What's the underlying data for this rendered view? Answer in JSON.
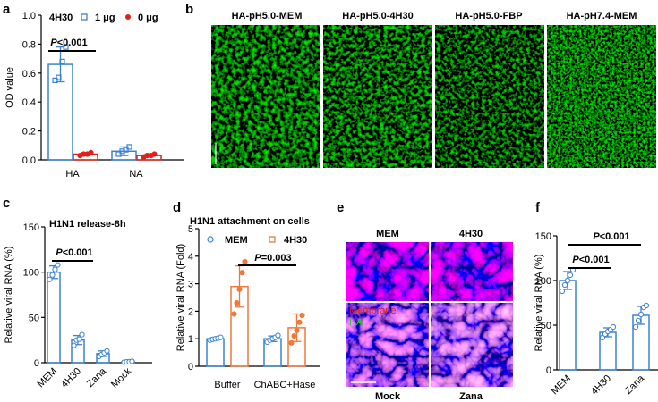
{
  "panels": {
    "a": {
      "label": "a"
    },
    "b": {
      "label": "b"
    },
    "c": {
      "label": "c"
    },
    "d": {
      "label": "d"
    },
    "e": {
      "label": "e"
    },
    "f": {
      "label": "f"
    }
  },
  "image_titles_b": [
    "HA-pH5.0-MEM",
    "HA-pH5.0-4H30",
    "HA-pH5.0-FBP",
    "HA-pH7.4-MEM"
  ],
  "panel_e": {
    "col_top": [
      "MEM",
      "4H30"
    ],
    "col_bottom": [
      "Mock",
      "Zana"
    ],
    "overlay_membrane": "Membrane",
    "overlay_ha": "HA"
  },
  "colors": {
    "blue": "#3b82d6",
    "red": "#e0201a",
    "orange": "#f07838",
    "green": "#2ee02e"
  },
  "chart_data": [
    {
      "id": "a",
      "type": "bar",
      "ylabel": "OD value",
      "ylim": [
        0,
        1.0
      ],
      "yticks": [
        "0.0",
        "0.2",
        "0.4",
        "0.6",
        "0.8",
        "1.0"
      ],
      "categories": [
        "HA",
        "NA"
      ],
      "legend_title": "4H30",
      "series": [
        {
          "name": "1 μg",
          "values": [
            0.66,
            0.06
          ],
          "errors": [
            0.12,
            0.03
          ],
          "points": [
            [
              0.55,
              0.57,
              0.68,
              0.78
            ],
            [
              0.04,
              0.06,
              0.07,
              0.09
            ]
          ]
        },
        {
          "name": "0 μg",
          "values": [
            0.04,
            0.03
          ],
          "errors": [
            0.01,
            0.01
          ],
          "points": [
            [
              0.03,
              0.04,
              0.04,
              0.05
            ],
            [
              0.02,
              0.03,
              0.03,
              0.04
            ]
          ]
        }
      ],
      "annotations": [
        {
          "p": "P",
          "text": "<0.001"
        }
      ]
    },
    {
      "id": "c",
      "type": "bar",
      "title": "H1N1 release-8h",
      "ylabel": "Relative viral RNA (%)",
      "ylim": [
        0,
        150
      ],
      "yticks": [
        "0",
        "50",
        "100",
        "150"
      ],
      "categories": [
        "MEM",
        "4H30",
        "Zana",
        "Mock"
      ],
      "values": [
        100,
        25,
        10,
        1
      ],
      "errors": [
        7,
        5,
        3,
        0.5
      ],
      "points": [
        [
          92,
          97,
          103,
          108
        ],
        [
          19,
          25,
          26,
          31
        ],
        [
          7,
          9,
          11,
          13
        ],
        [
          0.5,
          1,
          1,
          1.5
        ]
      ],
      "annotations": [
        {
          "p": "P",
          "text": "<0.001"
        }
      ]
    },
    {
      "id": "d",
      "type": "bar",
      "title": "H1N1 attachment on cells",
      "ylabel": "Relative viral RNA (Fold)",
      "ylim": [
        0,
        5
      ],
      "yticks": [
        "0",
        "1",
        "2",
        "3",
        "4",
        "5"
      ],
      "categories": [
        "Buffer",
        "ChABC+Hase"
      ],
      "series": [
        {
          "name": "MEM",
          "values": [
            1.0,
            1.0
          ],
          "errors": [
            0.05,
            0.1
          ],
          "points": [
            [
              0.95,
              0.98,
              1.0,
              1.02,
              1.05
            ],
            [
              0.88,
              0.95,
              1.0,
              1.05,
              1.12
            ]
          ]
        },
        {
          "name": "4H30",
          "values": [
            2.9,
            1.4
          ],
          "errors": [
            0.75,
            0.5
          ],
          "points": [
            [
              1.9,
              2.3,
              2.8,
              3.4,
              3.8
            ],
            [
              0.85,
              1.1,
              1.3,
              1.6,
              1.85
            ]
          ]
        }
      ],
      "annotations": [
        {
          "p": "P",
          "text": "=0.003"
        }
      ]
    },
    {
      "id": "f",
      "type": "bar",
      "ylabel": "Relative viral RNA (%)",
      "ylim": [
        0,
        150
      ],
      "yticks": [
        "0",
        "50",
        "100",
        "150"
      ],
      "categories": [
        "MEM",
        "4H30",
        "Zana"
      ],
      "values": [
        100,
        42,
        61
      ],
      "errors": [
        10,
        5,
        10
      ],
      "points": [
        [
          88,
          95,
          100,
          106,
          112
        ],
        [
          36,
          40,
          43,
          45,
          48
        ],
        [
          48,
          55,
          62,
          70,
          72
        ]
      ],
      "annotations": [
        {
          "p": "P",
          "text": "<0.001"
        },
        {
          "p": "P",
          "text": "<0.001"
        }
      ]
    }
  ]
}
